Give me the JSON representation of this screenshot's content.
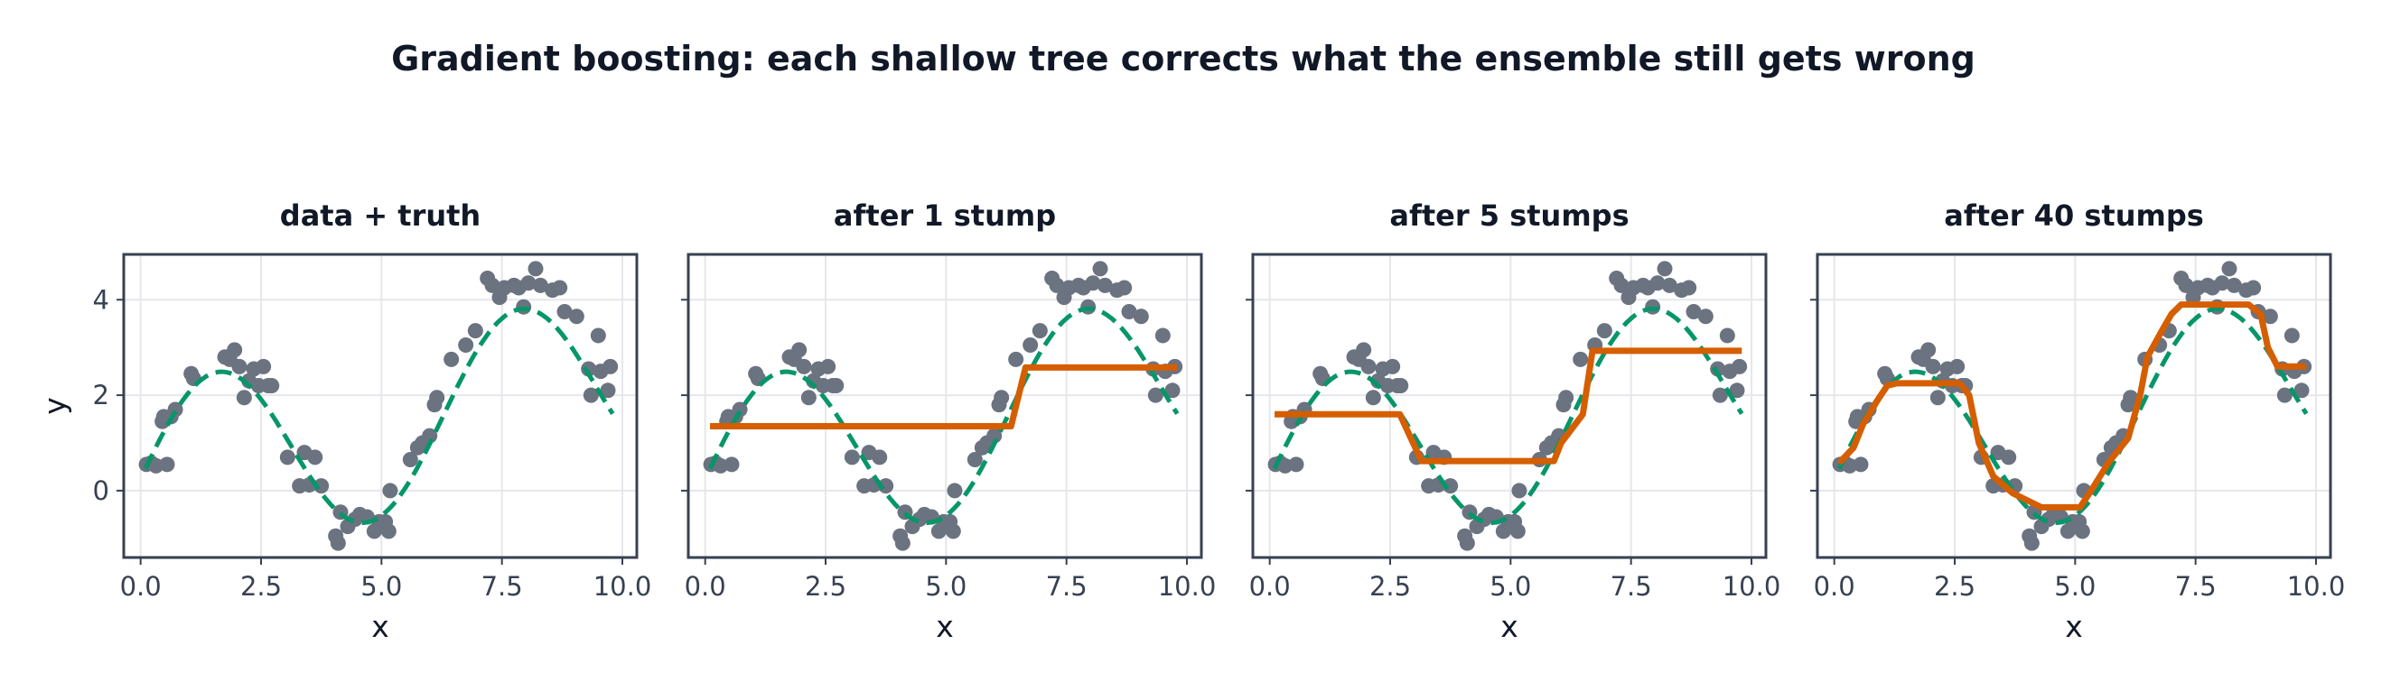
{
  "figure": {
    "title": "Gradient boosting: each shallow tree corrects what the ensemble still gets wrong"
  },
  "colors": {
    "points": "#6b7280",
    "truth": "#059669",
    "fit": "#d55e00",
    "frame": "#374151",
    "grid": "#e5e7eb"
  },
  "chart_data": [
    {
      "type": "line",
      "title": "data + truth",
      "xlabel": "x",
      "ylabel": "y",
      "xlim": [
        -0.35,
        10.3
      ],
      "ylim": [
        -1.4,
        4.95
      ],
      "xticks": [
        0.0,
        2.5,
        5.0,
        7.5,
        10.0
      ],
      "xtick_labels": [
        "0.0",
        "2.5",
        "5.0",
        "7.5",
        "10.0"
      ],
      "yticks": [
        0,
        2,
        4
      ],
      "ytick_labels": [
        "0",
        "2",
        "4"
      ],
      "grid": true,
      "series": [
        {
          "kind": "scatter",
          "ref": "points"
        },
        {
          "kind": "truth",
          "ref": "truth"
        }
      ]
    },
    {
      "type": "line",
      "title": "after 1 stump",
      "xlabel": "x",
      "ylabel": "",
      "xlim": [
        -0.35,
        10.3
      ],
      "ylim": [
        -1.4,
        4.95
      ],
      "xticks": [
        0.0,
        2.5,
        5.0,
        7.5,
        10.0
      ],
      "xtick_labels": [
        "0.0",
        "2.5",
        "5.0",
        "7.5",
        "10.0"
      ],
      "yticks": [
        0,
        2,
        4
      ],
      "ytick_labels": [
        "",
        "",
        ""
      ],
      "grid": true,
      "series": [
        {
          "kind": "scatter",
          "ref": "points"
        },
        {
          "kind": "truth",
          "ref": "truth"
        },
        {
          "kind": "fit",
          "x": [
            0.1,
            6.35,
            6.65,
            9.8
          ],
          "y": [
            1.35,
            1.35,
            2.58,
            2.58
          ]
        }
      ]
    },
    {
      "type": "line",
      "title": "after 5 stumps",
      "xlabel": "x",
      "ylabel": "",
      "xlim": [
        -0.35,
        10.3
      ],
      "ylim": [
        -1.4,
        4.95
      ],
      "xticks": [
        0.0,
        2.5,
        5.0,
        7.5,
        10.0
      ],
      "xtick_labels": [
        "0.0",
        "2.5",
        "5.0",
        "7.5",
        "10.0"
      ],
      "yticks": [
        0,
        2,
        4
      ],
      "ytick_labels": [
        "",
        "",
        ""
      ],
      "grid": true,
      "series": [
        {
          "kind": "scatter",
          "ref": "points"
        },
        {
          "kind": "truth",
          "ref": "truth"
        },
        {
          "kind": "fit",
          "x": [
            0.1,
            2.7,
            3.15,
            5.9,
            6.05,
            6.5,
            6.7,
            9.8
          ],
          "y": [
            1.6,
            1.6,
            0.62,
            0.62,
            1.0,
            1.6,
            2.93,
            2.93
          ]
        }
      ]
    },
    {
      "type": "line",
      "title": "after 40 stumps",
      "xlabel": "x",
      "ylabel": "",
      "xlim": [
        -0.35,
        10.3
      ],
      "ylim": [
        -1.4,
        4.95
      ],
      "xticks": [
        0.0,
        2.5,
        5.0,
        7.5,
        10.0
      ],
      "xtick_labels": [
        "0.0",
        "2.5",
        "5.0",
        "7.5",
        "10.0"
      ],
      "yticks": [
        0,
        2,
        4
      ],
      "ytick_labels": [
        "",
        "",
        ""
      ],
      "grid": true,
      "series": [
        {
          "kind": "scatter",
          "ref": "points"
        },
        {
          "kind": "truth",
          "ref": "truth"
        },
        {
          "kind": "fit",
          "x": [
            0.1,
            0.4,
            0.6,
            0.9,
            1.1,
            1.3,
            2.0,
            2.6,
            2.8,
            3.0,
            3.3,
            3.7,
            4.1,
            4.3,
            5.1,
            5.3,
            5.7,
            6.1,
            6.35,
            6.5,
            6.8,
            7.0,
            7.2,
            8.6,
            8.85,
            9.0,
            9.2,
            9.8
          ],
          "y": [
            0.58,
            0.9,
            1.4,
            1.9,
            2.2,
            2.25,
            2.25,
            2.25,
            2.0,
            1.0,
            0.3,
            -0.05,
            -0.25,
            -0.35,
            -0.35,
            -0.05,
            0.6,
            1.1,
            2.0,
            2.8,
            3.35,
            3.7,
            3.9,
            3.9,
            3.7,
            3.0,
            2.6,
            2.6
          ]
        }
      ]
    }
  ],
  "shared": {
    "points": {
      "x": [
        0.12,
        0.22,
        0.32,
        0.45,
        0.48,
        0.55,
        0.63,
        0.72,
        1.05,
        1.1,
        1.75,
        1.85,
        1.95,
        2.05,
        2.15,
        2.25,
        2.35,
        2.45,
        2.55,
        2.65,
        2.72,
        3.05,
        3.3,
        3.4,
        3.5,
        3.62,
        3.75,
        4.05,
        4.1,
        4.15,
        4.3,
        4.45,
        4.55,
        4.7,
        4.85,
        4.95,
        5.02,
        5.08,
        5.15,
        5.18,
        5.6,
        5.75,
        5.85,
        6.0,
        6.1,
        6.15,
        6.45,
        6.75,
        6.95,
        7.2,
        7.3,
        7.45,
        7.55,
        7.75,
        7.85,
        7.95,
        8.05,
        8.2,
        8.3,
        8.55,
        8.7,
        8.8,
        9.05,
        9.3,
        9.35,
        9.5,
        9.55,
        9.7,
        9.75
      ],
      "y": [
        0.55,
        0.58,
        0.52,
        1.45,
        1.55,
        0.55,
        1.55,
        1.7,
        2.45,
        2.35,
        2.8,
        2.75,
        2.95,
        2.6,
        1.95,
        2.3,
        2.55,
        2.2,
        2.6,
        2.2,
        2.2,
        0.7,
        0.1,
        0.8,
        0.12,
        0.7,
        0.1,
        -0.95,
        -1.1,
        -0.45,
        -0.75,
        -0.6,
        -0.5,
        -0.55,
        -0.85,
        -0.65,
        -0.75,
        -0.65,
        -0.85,
        0.0,
        0.65,
        0.9,
        1.0,
        1.15,
        1.8,
        1.95,
        2.75,
        3.05,
        3.35,
        4.45,
        4.3,
        4.05,
        4.25,
        4.3,
        4.25,
        3.85,
        4.35,
        4.65,
        4.3,
        4.2,
        4.25,
        3.75,
        3.65,
        2.55,
        2.0,
        3.25,
        2.5,
        2.1,
        2.6
      ]
    },
    "truth_curve": "sin(x)*1.9 + 0.21*x + 0.25"
  }
}
